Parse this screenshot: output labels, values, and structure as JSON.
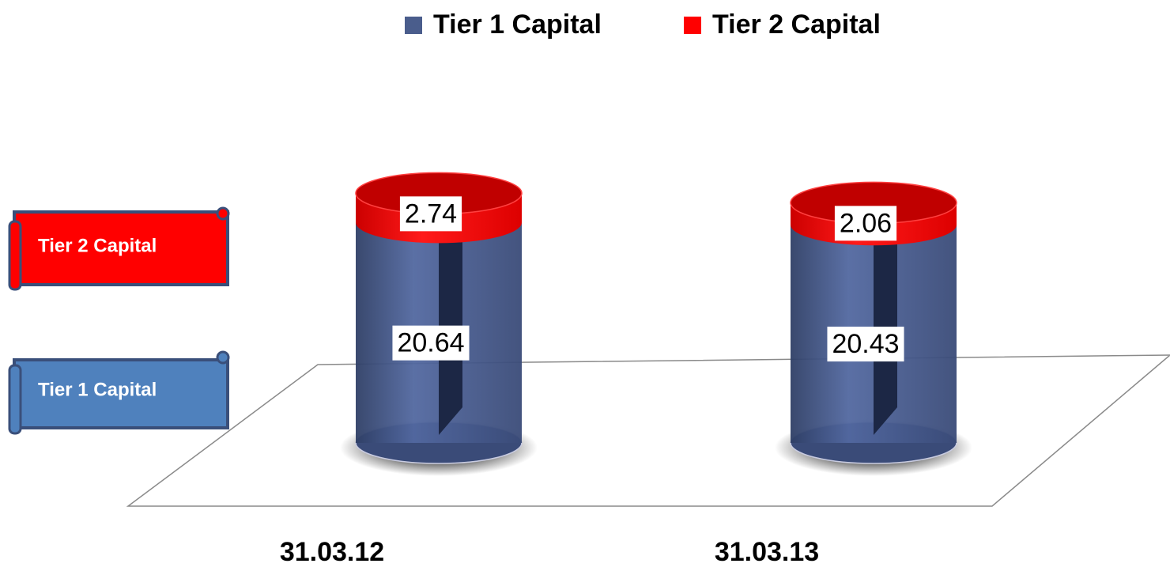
{
  "chart_data": {
    "type": "cylinder_stacked_bar",
    "categories": [
      "31.03.12",
      "31.03.13"
    ],
    "series": [
      {
        "name": "Tier 1 Capital",
        "color": "#4a5d8c",
        "values": [
          20.64,
          20.43
        ]
      },
      {
        "name": "Tier 2 Capital",
        "color": "#ff0000",
        "values": [
          2.74,
          2.06
        ]
      }
    ]
  }
}
